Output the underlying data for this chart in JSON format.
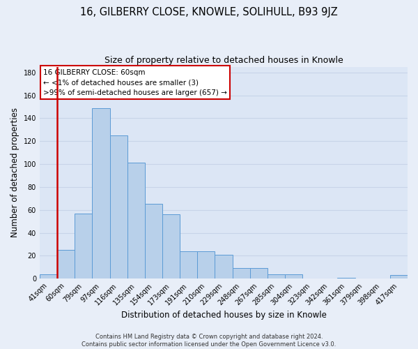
{
  "title": "16, GILBERRY CLOSE, KNOWLE, SOLIHULL, B93 9JZ",
  "subtitle": "Size of property relative to detached houses in Knowle",
  "xlabel": "Distribution of detached houses by size in Knowle",
  "ylabel": "Number of detached properties",
  "bin_labels": [
    "41sqm",
    "60sqm",
    "79sqm",
    "97sqm",
    "116sqm",
    "135sqm",
    "154sqm",
    "173sqm",
    "191sqm",
    "210sqm",
    "229sqm",
    "248sqm",
    "267sqm",
    "285sqm",
    "304sqm",
    "323sqm",
    "342sqm",
    "361sqm",
    "379sqm",
    "398sqm",
    "417sqm"
  ],
  "bar_heights": [
    4,
    25,
    57,
    149,
    125,
    101,
    65,
    56,
    24,
    24,
    21,
    9,
    9,
    4,
    4,
    0,
    0,
    1,
    0,
    0,
    3
  ],
  "bar_color": "#b8d0ea",
  "bar_edge_color": "#5b9bd5",
  "highlight_bar_index": 1,
  "highlight_color": "#cc0000",
  "annotation_title": "16 GILBERRY CLOSE: 60sqm",
  "annotation_line2": "← <1% of detached houses are smaller (3)",
  "annotation_line3": ">99% of semi-detached houses are larger (657) →",
  "annotation_box_color": "#ffffff",
  "annotation_box_edge": "#cc0000",
  "ylim": [
    0,
    185
  ],
  "yticks": [
    0,
    20,
    40,
    60,
    80,
    100,
    120,
    140,
    160,
    180
  ],
  "footer_line1": "Contains HM Land Registry data © Crown copyright and database right 2024.",
  "footer_line2": "Contains public sector information licensed under the Open Government Licence v3.0.",
  "background_color": "#e8eef8",
  "plot_bg_color": "#dce6f5",
  "grid_color": "#c8d4e8",
  "title_fontsize": 10.5,
  "subtitle_fontsize": 9,
  "axis_label_fontsize": 8.5,
  "tick_fontsize": 7,
  "footer_fontsize": 6,
  "ann_fontsize": 7.5
}
